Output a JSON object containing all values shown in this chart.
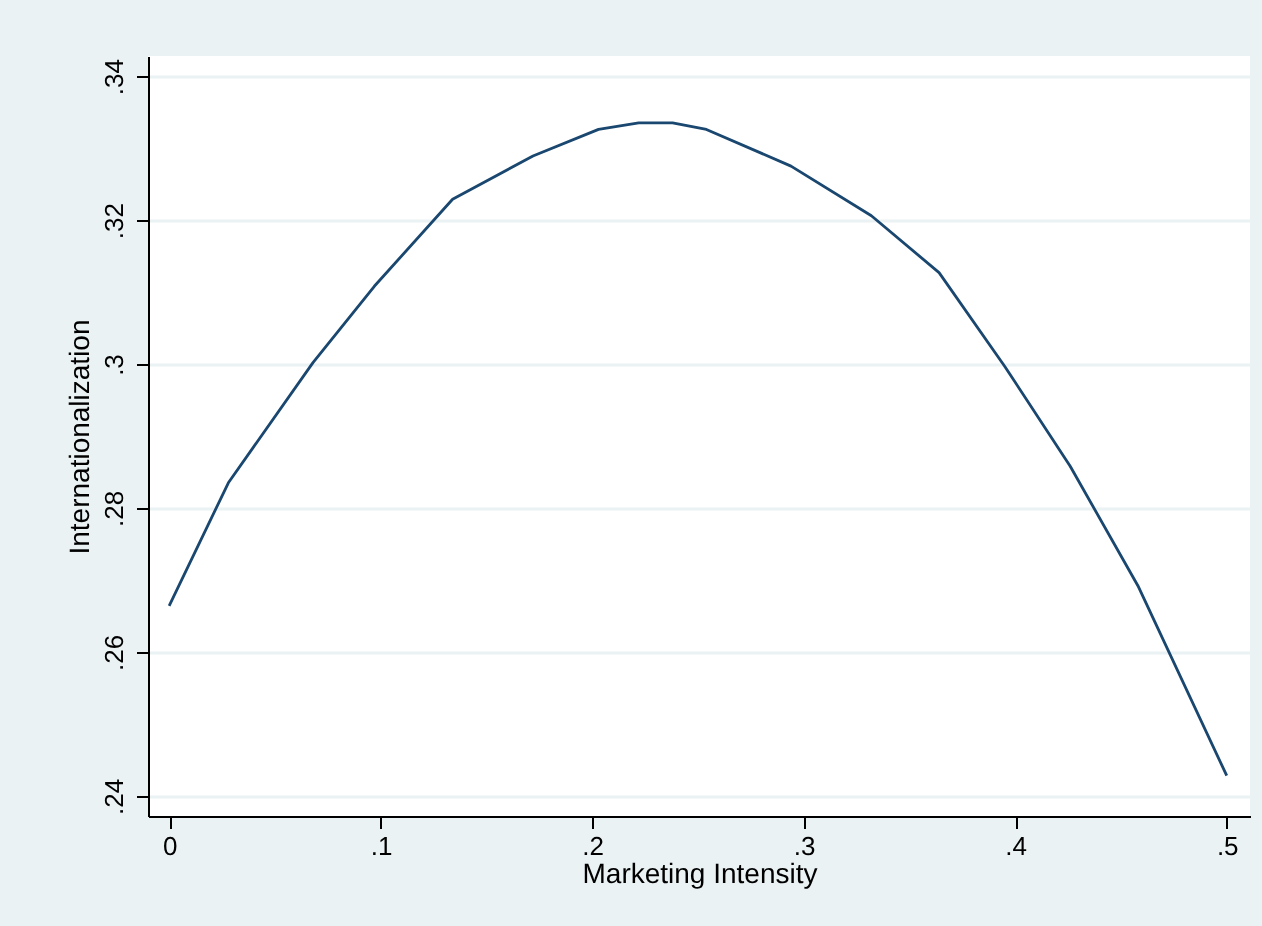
{
  "chart_data": {
    "type": "line",
    "xlabel": "Marketing Intensity",
    "ylabel": "Internationalization",
    "x": [
      0,
      0.028,
      0.068,
      0.097,
      0.134,
      0.172,
      0.203,
      0.222,
      0.238,
      0.254,
      0.294,
      0.332,
      0.364,
      0.395,
      0.426,
      0.458,
      0.5
    ],
    "series": [
      {
        "color": "#1a476f",
        "values": [
          0.2664,
          0.2835,
          0.3002,
          0.3108,
          0.3229,
          0.3289,
          0.3326,
          0.3335,
          0.3335,
          0.3326,
          0.3275,
          0.3206,
          0.3127,
          0.2997,
          0.2858,
          0.2692,
          0.2428
        ]
      }
    ],
    "xlim": [
      -0.01,
      0.511
    ],
    "ylim": [
      0.2372,
      0.3428
    ],
    "xticks": [
      0,
      {
        "value": 0.1,
        "label": ".1"
      },
      {
        "value": 0.2,
        "label": ".2"
      },
      {
        "value": 0.3,
        "label": ".3"
      },
      {
        "value": 0.4,
        "label": ".4"
      },
      {
        "value": 0.5,
        "label": ".5"
      }
    ],
    "yticks": [
      {
        "value": 0.24,
        "label": ".24"
      },
      {
        "value": 0.26,
        "label": ".26"
      },
      {
        "value": 0.28,
        "label": ".28"
      },
      {
        "value": 0.3,
        "label": ".3"
      },
      {
        "value": 0.32,
        "label": ".32"
      },
      {
        "value": 0.34,
        "label": ".34"
      }
    ],
    "grid": "y",
    "line_style": "solid",
    "marker": "none"
  }
}
